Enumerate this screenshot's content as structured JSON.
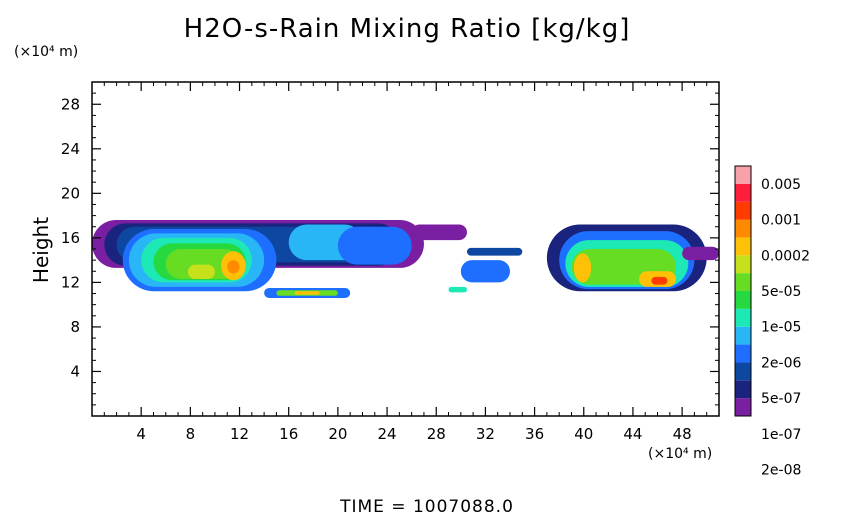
{
  "chart_data": {
    "type": "heatmap",
    "title": "H2O-s-Rain Mixing Ratio [kg/kg]",
    "ylabel": "Height",
    "xlabel": "",
    "x_unit": "(×10⁴ m)",
    "y_unit": "(×10⁴ m)",
    "xlim": [
      0,
      51
    ],
    "ylim": [
      0,
      30
    ],
    "x_ticks": [
      "4",
      "8",
      "12",
      "16",
      "20",
      "24",
      "28",
      "32",
      "36",
      "40",
      "44",
      "48"
    ],
    "x_tick_values": [
      4,
      8,
      12,
      16,
      20,
      24,
      28,
      32,
      36,
      40,
      44,
      48
    ],
    "y_ticks": [
      "4",
      "8",
      "12",
      "16",
      "20",
      "24",
      "28"
    ],
    "y_tick_values": [
      4,
      8,
      12,
      16,
      20,
      24,
      28
    ],
    "colorbar": {
      "labels": [
        "0.005",
        "0.001",
        "0.0002",
        "5e-05",
        "1e-05",
        "2e-06",
        "5e-07",
        "1e-07",
        "2e-08"
      ],
      "colors": [
        "#7b1fa2",
        "#1a237e",
        "#0d47a1",
        "#1e6fff",
        "#29b6f6",
        "#1de9b6",
        "#26d940",
        "#66dd22",
        "#c6e01c",
        "#ffc107",
        "#ff8a00",
        "#ff3b00",
        "#ff1f3d",
        "#f7a1a8"
      ]
    },
    "regions": [
      {
        "x": [
          0,
          27
        ],
        "y": [
          13.3,
          17.6
        ],
        "level": 0
      },
      {
        "x": [
          1,
          25
        ],
        "y": [
          13.5,
          17.3
        ],
        "level": 1
      },
      {
        "x": [
          2,
          24
        ],
        "y": [
          13.8,
          17
        ],
        "level": 2
      },
      {
        "x": [
          2.5,
          15
        ],
        "y": [
          11.2,
          16.8
        ],
        "level": 3
      },
      {
        "x": [
          3,
          14
        ],
        "y": [
          11.6,
          16.4
        ],
        "level": 4
      },
      {
        "x": [
          4,
          13
        ],
        "y": [
          12,
          16
        ],
        "level": 5
      },
      {
        "x": [
          5,
          12.5
        ],
        "y": [
          12.2,
          15.5
        ],
        "level": 6
      },
      {
        "x": [
          6,
          12
        ],
        "y": [
          12.3,
          15
        ],
        "level": 7
      },
      {
        "x": [
          7.8,
          10
        ],
        "y": [
          12.3,
          13.6
        ],
        "level": 8
      },
      {
        "x": [
          10.5,
          12.5
        ],
        "y": [
          12.2,
          14.8
        ],
        "level": 9
      },
      {
        "x": [
          11,
          12
        ],
        "y": [
          12.8,
          14
        ],
        "level": 10
      },
      {
        "x": [
          16,
          22
        ],
        "y": [
          14,
          17.2
        ],
        "level": 4
      },
      {
        "x": [
          20,
          26
        ],
        "y": [
          13.6,
          17
        ],
        "level": 3
      },
      {
        "x": [
          14,
          21
        ],
        "y": [
          10.6,
          11.5
        ],
        "level": 3
      },
      {
        "x": [
          15,
          20
        ],
        "y": [
          10.8,
          11.3
        ],
        "level": 7
      },
      {
        "x": [
          16.5,
          18.5
        ],
        "y": [
          10.9,
          11.2
        ],
        "level": 9
      },
      {
        "x": [
          26,
          30.5
        ],
        "y": [
          15.8,
          17.2
        ],
        "level": 0
      },
      {
        "x": [
          30.5,
          35
        ],
        "y": [
          14.4,
          15.1
        ],
        "level": 2
      },
      {
        "x": [
          30,
          34
        ],
        "y": [
          12,
          14
        ],
        "level": 3
      },
      {
        "x": [
          29,
          30.5
        ],
        "y": [
          11.1,
          11.6
        ],
        "level": 5
      },
      {
        "x": [
          37,
          50
        ],
        "y": [
          11.2,
          17.2
        ],
        "level": 1
      },
      {
        "x": [
          38,
          49
        ],
        "y": [
          11.4,
          16.6
        ],
        "level": 3
      },
      {
        "x": [
          38.5,
          48.5
        ],
        "y": [
          11.6,
          15.8
        ],
        "level": 5
      },
      {
        "x": [
          39,
          47.5
        ],
        "y": [
          11.8,
          15
        ],
        "level": 7
      },
      {
        "x": [
          39.2,
          40.6
        ],
        "y": [
          12,
          14.6
        ],
        "level": 9
      },
      {
        "x": [
          44.5,
          47.5
        ],
        "y": [
          11.6,
          13
        ],
        "level": 9
      },
      {
        "x": [
          45.5,
          46.8
        ],
        "y": [
          11.8,
          12.5
        ],
        "level": 11
      },
      {
        "x": [
          48,
          51
        ],
        "y": [
          14,
          15.2
        ],
        "level": 0
      }
    ],
    "grid": false,
    "legend": "right"
  },
  "time_label": "TIME = 1007088.0"
}
